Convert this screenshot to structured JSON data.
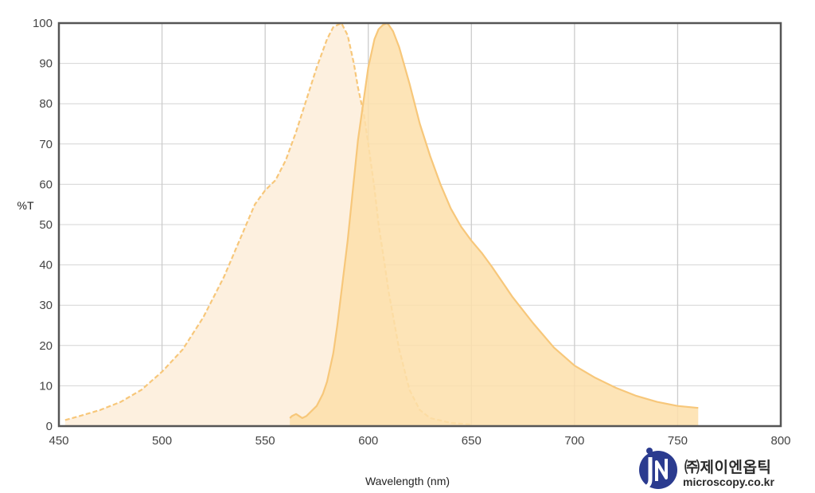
{
  "chart_data": {
    "type": "area",
    "xlabel": "Wavelength (nm)",
    "ylabel": "%T",
    "xlim": [
      450,
      800
    ],
    "ylim": [
      0,
      100
    ],
    "xticks": [
      450,
      500,
      550,
      600,
      650,
      700,
      750,
      800
    ],
    "yticks": [
      0,
      10,
      20,
      30,
      40,
      50,
      60,
      70,
      80,
      90,
      100
    ],
    "grid": true,
    "series": [
      {
        "style": "dashed",
        "color": "#f7c77a",
        "fill": "#fdf0df",
        "x": [
          453,
          460,
          470,
          480,
          490,
          500,
          510,
          520,
          530,
          540,
          545,
          550,
          555,
          560,
          565,
          570,
          575,
          580,
          583,
          585,
          587,
          590,
          593,
          595,
          598,
          600,
          603,
          605,
          608,
          610,
          615,
          620,
          625,
          630,
          640,
          650
        ],
        "y": [
          1.5,
          2.5,
          4,
          6,
          9,
          13.5,
          19,
          27,
          37,
          49,
          55,
          58.5,
          61,
          66,
          73,
          81,
          89,
          96,
          99,
          99.5,
          100,
          97,
          90,
          84,
          77,
          70,
          59,
          50,
          40,
          33,
          19,
          9,
          4,
          2,
          0.8,
          0.4
        ]
      },
      {
        "style": "solid",
        "color": "#f7c77a",
        "fill": "#fddfaa",
        "x": [
          562,
          563,
          565,
          568,
          570,
          575,
          578,
          580,
          583,
          585,
          590,
          595,
          600,
          603,
          605,
          607,
          609,
          610,
          612,
          615,
          620,
          625,
          630,
          635,
          640,
          645,
          650,
          655,
          660,
          670,
          680,
          690,
          700,
          710,
          720,
          730,
          740,
          750,
          760
        ],
        "y": [
          2,
          2.5,
          3,
          2,
          2.5,
          5,
          8,
          11,
          18,
          25,
          46,
          71,
          89,
          96,
          98.5,
          99.5,
          100,
          99.5,
          98,
          94,
          85,
          75,
          67,
          60,
          54,
          49.5,
          46,
          43,
          39.5,
          32,
          25.5,
          19.5,
          15,
          12,
          9.5,
          7.5,
          6,
          5,
          4.5
        ]
      }
    ]
  },
  "logo": {
    "korean": "㈜제이엔옵틱",
    "url": "microscopy.co.kr",
    "brand_color": "#2b3b8f"
  }
}
